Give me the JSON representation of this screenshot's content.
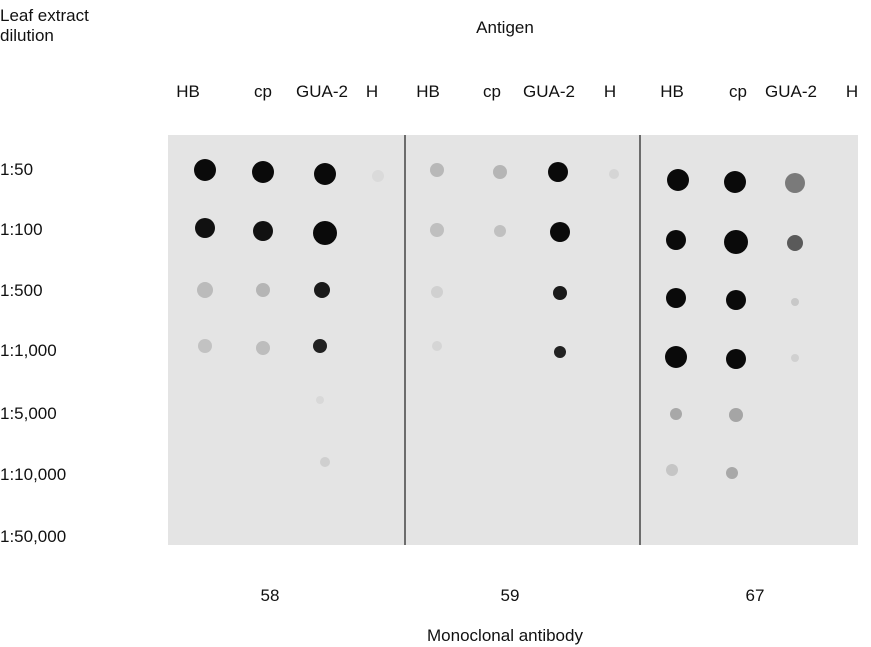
{
  "header": {
    "row_axis_label": "Leaf extract dilution",
    "column_axis_label": "Antigen"
  },
  "columns": [
    "HB",
    "cp",
    "GUA-2",
    "H",
    "HB",
    "cp",
    "GUA-2",
    "H",
    "HB",
    "cp",
    "GUA-2",
    "H"
  ],
  "rows": [
    "1:50",
    "1:100",
    "1:500",
    "1:1,000",
    "1:5,000",
    "1:10,000",
    "1:50,000"
  ],
  "antibodies": [
    "58",
    "59",
    "67"
  ],
  "footer": {
    "axis_label": "Monoclonal antibody"
  }
}
